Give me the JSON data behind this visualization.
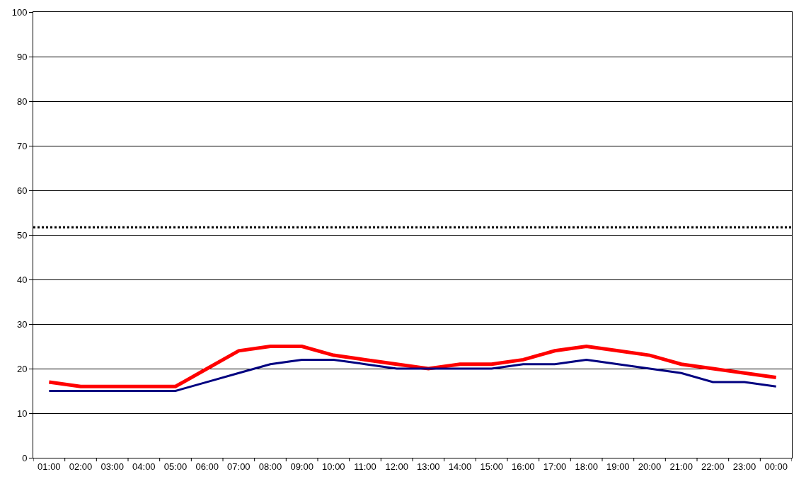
{
  "chart_data": {
    "type": "line",
    "categories": [
      "01:00",
      "02:00",
      "03:00",
      "04:00",
      "05:00",
      "06:00",
      "07:00",
      "08:00",
      "09:00",
      "10:00",
      "11:00",
      "12:00",
      "13:00",
      "14:00",
      "15:00",
      "16:00",
      "17:00",
      "18:00",
      "19:00",
      "20:00",
      "21:00",
      "22:00",
      "23:00",
      "00:00"
    ],
    "series": [
      {
        "color": "#ff0000",
        "values": [
          17,
          16,
          16,
          16,
          16,
          20,
          24,
          25,
          25,
          23,
          22,
          21,
          20,
          21,
          21,
          22,
          24,
          25,
          24,
          23,
          21,
          20,
          19,
          18
        ]
      },
      {
        "color": "#000080",
        "values": [
          15,
          15,
          15,
          15,
          15,
          17,
          19,
          21,
          22,
          22,
          21,
          20,
          20,
          20,
          20,
          21,
          21,
          22,
          21,
          20,
          19,
          17,
          17,
          16
        ]
      }
    ],
    "ylim": [
      0,
      100
    ],
    "yticks": [
      0,
      10,
      20,
      30,
      40,
      50,
      60,
      70,
      80,
      90,
      100
    ],
    "grid": "y",
    "legend": false,
    "marker": "none",
    "line_style": "solid",
    "ref_lines": [
      {
        "axis": "y",
        "value": 51.7,
        "color": "#000000",
        "line_style": "dotted"
      }
    ]
  }
}
